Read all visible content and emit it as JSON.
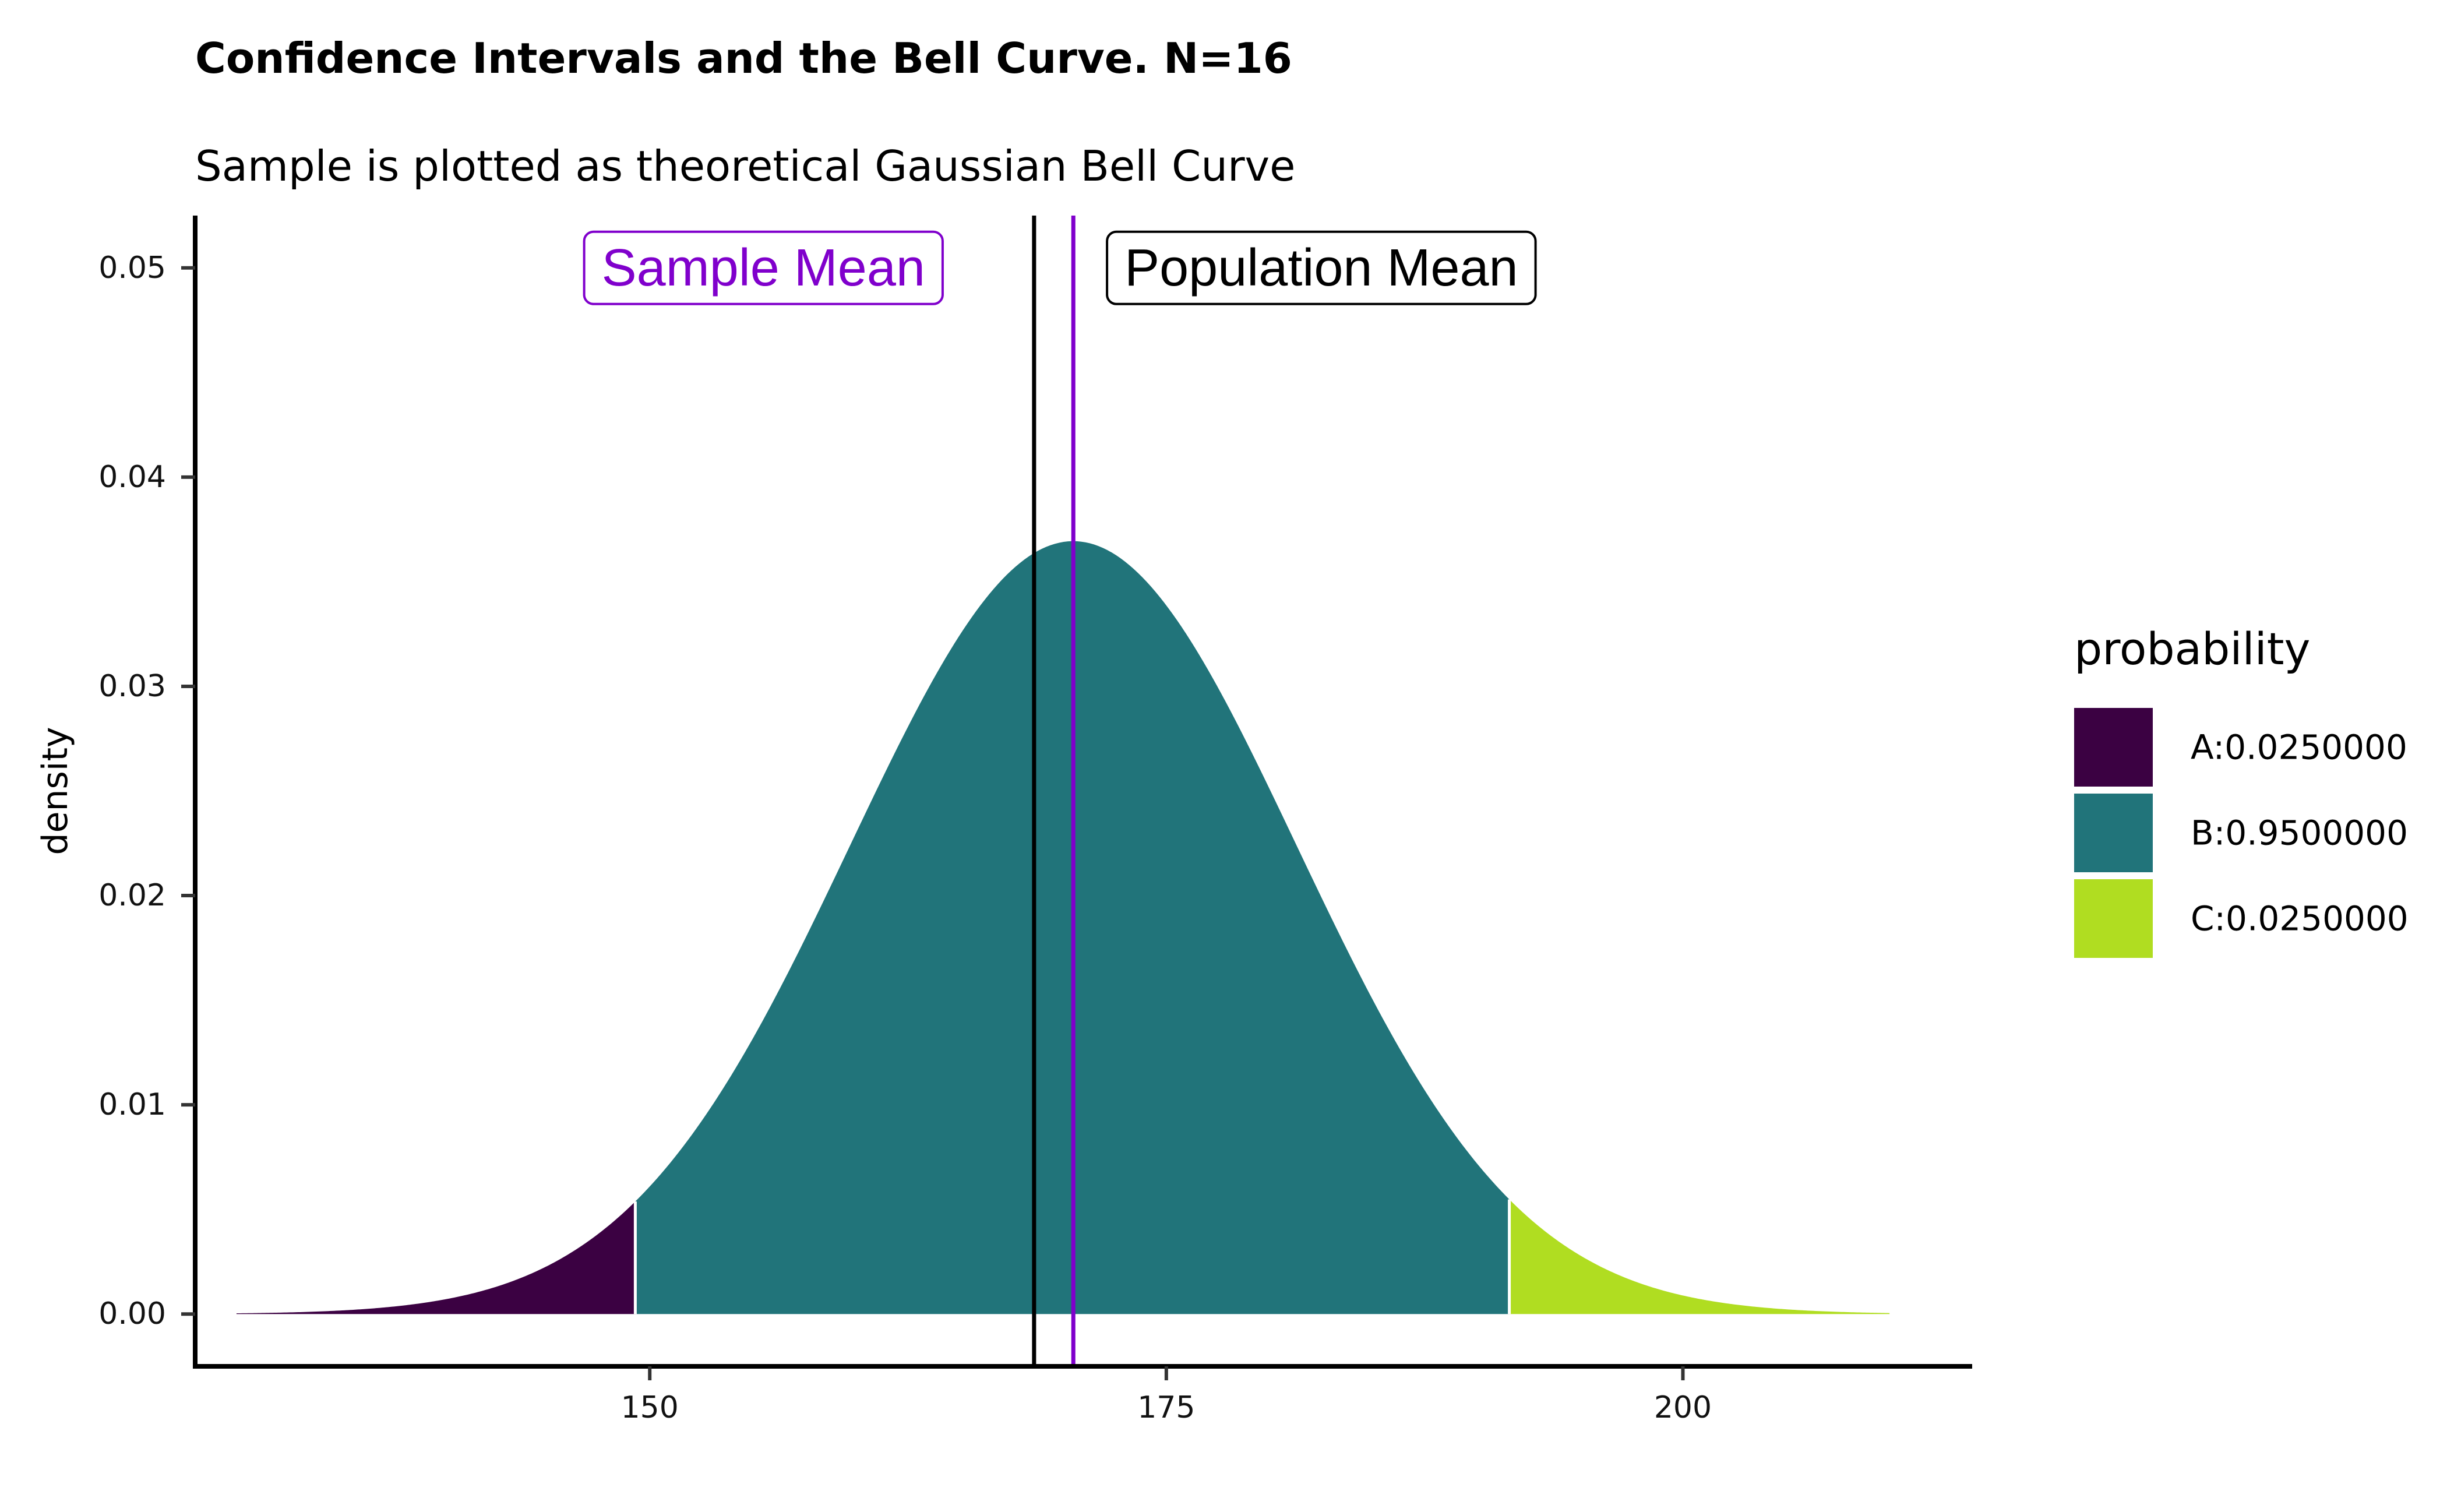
{
  "chart_data": {
    "type": "area",
    "title": "Confidence Intervals and the Bell Curve. N=16",
    "subtitle": "Sample is plotted as theoretical Gaussian Bell Curve",
    "xlabel": "",
    "ylabel": "density",
    "xlim": [
      128,
      214
    ],
    "ylim": [
      -0.0025,
      0.0525
    ],
    "x_ticks": [
      150,
      175,
      200
    ],
    "x_tick_labels": [
      "150",
      "175",
      "200"
    ],
    "y_ticks": [
      0.0,
      0.01,
      0.02,
      0.03,
      0.04,
      0.05
    ],
    "y_tick_labels": [
      "0.00",
      "0.01",
      "0.02",
      "0.03",
      "0.04",
      "0.05"
    ],
    "grid": false,
    "distribution": {
      "kind": "normal",
      "mean": 170.5,
      "sd": 10.8,
      "x_range": [
        130,
        210
      ],
      "lower_cutoff": 149.3,
      "upper_cutoff": 191.6
    },
    "regions": [
      {
        "name": "A:0.0250000",
        "from": 130,
        "to": 149.3,
        "color": "#3b0142"
      },
      {
        "name": "B:0.9500000",
        "from": 149.3,
        "to": 191.6,
        "color": "#21747a"
      },
      {
        "name": "C:0.0250000",
        "from": 191.6,
        "to": 210,
        "color": "#b0dd21"
      }
    ],
    "vlines": [
      {
        "label": "Population Mean",
        "x": 168.6,
        "color": "#000000"
      },
      {
        "label": "Sample Mean",
        "x": 170.5,
        "color": "#8000cc"
      }
    ],
    "annotations": [
      {
        "text": "Sample Mean",
        "x": 155.5,
        "y": 0.05,
        "color": "#8000cc"
      },
      {
        "text": "Population Mean",
        "x": 182.5,
        "y": 0.05,
        "color": "#000000"
      }
    ],
    "legend": {
      "title": "probability",
      "position": "right"
    }
  }
}
